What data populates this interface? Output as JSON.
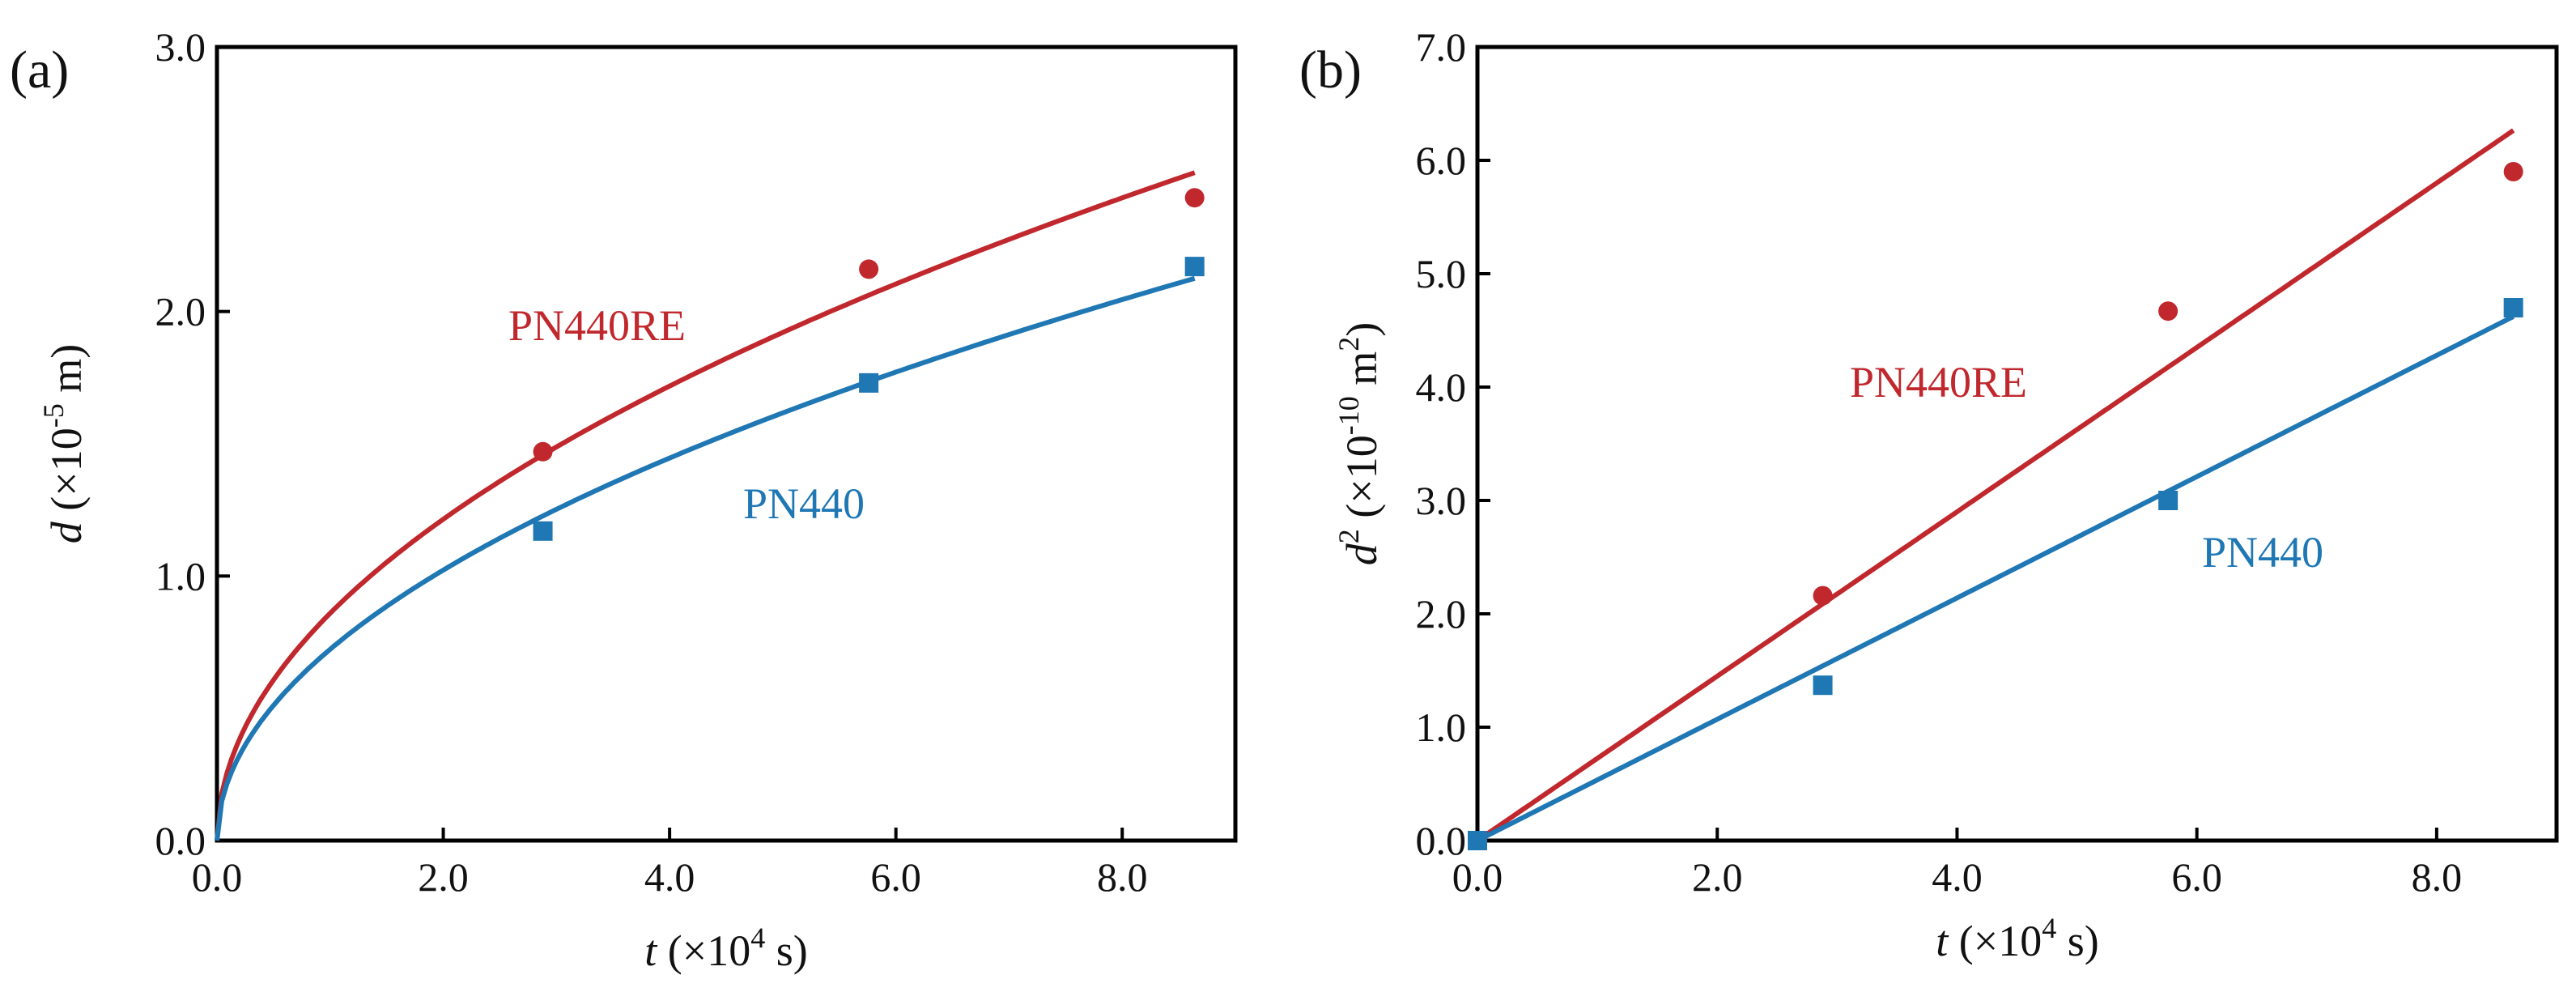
{
  "chart_data": [
    {
      "type": "scatter",
      "panel_label": "(a)",
      "x_unit": "×10⁴ s",
      "xlim": [
        0,
        9
      ],
      "ylim": [
        0,
        3.0
      ],
      "xticks": [
        0,
        2,
        4,
        6,
        8
      ],
      "yticks": [
        0,
        1,
        2,
        3
      ],
      "xtick_labels": [
        "0.0",
        "2.0",
        "4.0",
        "6.0",
        "8.0"
      ],
      "ytick_labels": [
        "0.0",
        "1.0",
        "2.0",
        "3.0"
      ],
      "fit": "parabolic",
      "series": [
        {
          "name": "PN440RE",
          "color": "#c0282d",
          "marker": "circle",
          "x": [
            2.88,
            5.76,
            8.64
          ],
          "y": [
            1.47,
            2.16,
            2.43
          ],
          "fit_coefficient": 0.859
        },
        {
          "name": "PN440",
          "color": "#1f77b4",
          "marker": "square",
          "x": [
            2.88,
            5.76,
            8.64
          ],
          "y": [
            1.17,
            1.73,
            2.17
          ],
          "fit_coefficient": 0.723
        }
      ]
    },
    {
      "type": "scatter",
      "panel_label": "(b)",
      "x_unit": "×10⁴ s",
      "xlim": [
        0,
        9
      ],
      "ylim": [
        0,
        7.0
      ],
      "xticks": [
        0,
        2,
        4,
        6,
        8
      ],
      "yticks": [
        0,
        1,
        2,
        3,
        4,
        5,
        6,
        7
      ],
      "xtick_labels": [
        "0.0",
        "2.0",
        "4.0",
        "6.0",
        "8.0"
      ],
      "ytick_labels": [
        "0.0",
        "1.0",
        "2.0",
        "3.0",
        "4.0",
        "5.0",
        "6.0",
        "7.0"
      ],
      "fit": "linear",
      "series": [
        {
          "name": "PN440RE",
          "color": "#c0282d",
          "marker": "circle",
          "x": [
            0,
            2.88,
            5.76,
            8.64
          ],
          "y": [
            0,
            2.16,
            4.67,
            5.9
          ],
          "fit_slope": 0.725
        },
        {
          "name": "PN440",
          "color": "#1f77b4",
          "marker": "square",
          "x": [
            0,
            2.88,
            5.76,
            8.64
          ],
          "y": [
            0,
            1.37,
            3.0,
            4.7
          ],
          "fit_slope": 0.535
        }
      ]
    }
  ],
  "labels": {
    "a": {
      "xlabel_var": "t",
      "xlabel_unit": " (×10",
      "xlabel_exp": "4",
      "xlabel_tail": " s)",
      "ylabel_var": "d",
      "ylabel_unit": " (×10",
      "ylabel_exp": "-5",
      "ylabel_tail": " m)"
    },
    "b": {
      "xlabel_var": "t",
      "xlabel_unit": " (×10",
      "xlabel_exp": "4",
      "xlabel_tail": " s)",
      "ylabel_var": "d",
      "ylabel_var_exp": "2",
      "ylabel_unit": " (×10",
      "ylabel_exp": "-10",
      "ylabel_mid": " m",
      "ylabel_exp2": "2",
      "ylabel_tail": ")"
    }
  }
}
